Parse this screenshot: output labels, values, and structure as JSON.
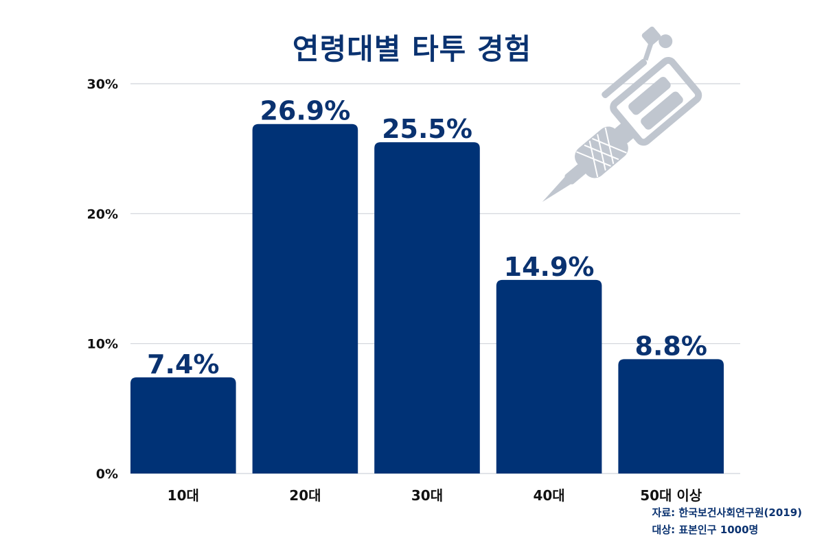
{
  "colors": {
    "bar": "#003276",
    "title": "#0a3270",
    "grid": "#cfd3da",
    "axis_text": "#111111",
    "decoration": "#c0c6cf"
  },
  "decoration_icon": "tattoo-machine-icon",
  "source": {
    "line1": "자료: 한국보건사회연구원(2019)",
    "line2": "대상: 표본인구 1000명"
  },
  "chart_data": {
    "type": "bar",
    "title": "연령대별 타투 경험",
    "categories": [
      "10대",
      "20대",
      "30대",
      "40대",
      "50대 이상"
    ],
    "values": [
      7.4,
      26.9,
      25.5,
      14.9,
      8.8
    ],
    "data_labels": [
      "7.4%",
      "26.9%",
      "25.5%",
      "14.9%",
      "8.8%"
    ],
    "ylim": [
      0,
      30
    ],
    "yticks": [
      0,
      10,
      20,
      30
    ],
    "ytick_labels": [
      "0%",
      "10%",
      "20%",
      "30%"
    ],
    "grid": true,
    "legend": "none"
  }
}
